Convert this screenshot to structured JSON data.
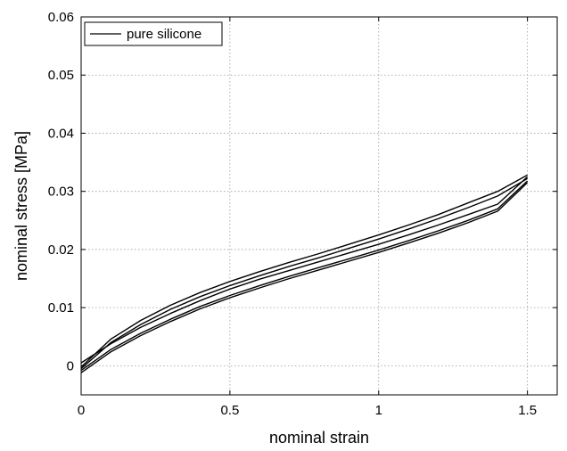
{
  "chart_data": {
    "type": "line",
    "title": "",
    "xlabel": "nominal strain",
    "ylabel": "nominal stress [MPa]",
    "xlim": [
      0,
      1.6
    ],
    "ylim": [
      -0.005,
      0.06
    ],
    "x_ticks": [
      0,
      0.5,
      1,
      1.5
    ],
    "x_tick_labels": [
      "0",
      "0.5",
      "1",
      "1.5"
    ],
    "y_ticks": [
      0,
      0.01,
      0.02,
      0.03,
      0.04,
      0.05,
      0.06
    ],
    "y_tick_labels": [
      "0",
      "0.01",
      "0.02",
      "0.03",
      "0.04",
      "0.05",
      "0.06"
    ],
    "grid": true,
    "legend": {
      "position": "top-left",
      "entries": [
        "pure silicone"
      ]
    },
    "colors": {
      "line": "#000000",
      "grid": "#9a9a9a"
    },
    "series": [
      {
        "name": "pure silicone",
        "x": [
          0,
          0.1,
          0.2,
          0.3,
          0.4,
          0.5,
          0.6,
          0.7,
          0.8,
          0.9,
          1.0,
          1.1,
          1.2,
          1.3,
          1.4,
          1.5
        ],
        "y": [
          0.0005,
          0.0038,
          0.0066,
          0.009,
          0.0112,
          0.0132,
          0.0149,
          0.0164,
          0.0179,
          0.0194,
          0.0209,
          0.0225,
          0.0242,
          0.026,
          0.0278,
          0.0325
        ]
      },
      {
        "x": [
          0,
          0.1,
          0.2,
          0.3,
          0.4,
          0.5,
          0.6,
          0.7,
          0.8,
          0.9,
          1.0,
          1.1,
          1.2,
          1.3,
          1.4,
          1.5
        ],
        "y": [
          -0.0008,
          0.0028,
          0.0056,
          0.008,
          0.0102,
          0.0121,
          0.0138,
          0.0154,
          0.0169,
          0.0184,
          0.0199,
          0.0215,
          0.0232,
          0.025,
          0.027,
          0.0318
        ]
      },
      {
        "x": [
          0,
          0.1,
          0.2,
          0.3,
          0.4,
          0.5,
          0.6,
          0.7,
          0.8,
          0.9,
          1.0,
          1.1,
          1.2,
          1.3,
          1.4,
          1.5
        ],
        "y": [
          -0.0012,
          0.0024,
          0.0052,
          0.0076,
          0.0098,
          0.0117,
          0.0134,
          0.015,
          0.0165,
          0.018,
          0.0195,
          0.0211,
          0.0228,
          0.0246,
          0.0266,
          0.0315
        ]
      },
      {
        "x": [
          0,
          0.1,
          0.2,
          0.3,
          0.4,
          0.5,
          0.6,
          0.7,
          0.8,
          0.9,
          1.0,
          1.1,
          1.2,
          1.3,
          1.4,
          1.5
        ],
        "y": [
          -0.0002,
          0.0046,
          0.0078,
          0.0104,
          0.0126,
          0.0145,
          0.0162,
          0.0178,
          0.0193,
          0.0209,
          0.0225,
          0.0242,
          0.026,
          0.028,
          0.03,
          0.0328
        ]
      },
      {
        "x": [
          0,
          0.1,
          0.2,
          0.3,
          0.4,
          0.5,
          0.6,
          0.7,
          0.8,
          0.9,
          1.0,
          1.1,
          1.2,
          1.3,
          1.4,
          1.5
        ],
        "y": [
          -0.0005,
          0.004,
          0.0071,
          0.0097,
          0.0119,
          0.0138,
          0.0155,
          0.0171,
          0.0186,
          0.0202,
          0.0218,
          0.0235,
          0.0253,
          0.0272,
          0.0292,
          0.0322
        ]
      }
    ]
  }
}
